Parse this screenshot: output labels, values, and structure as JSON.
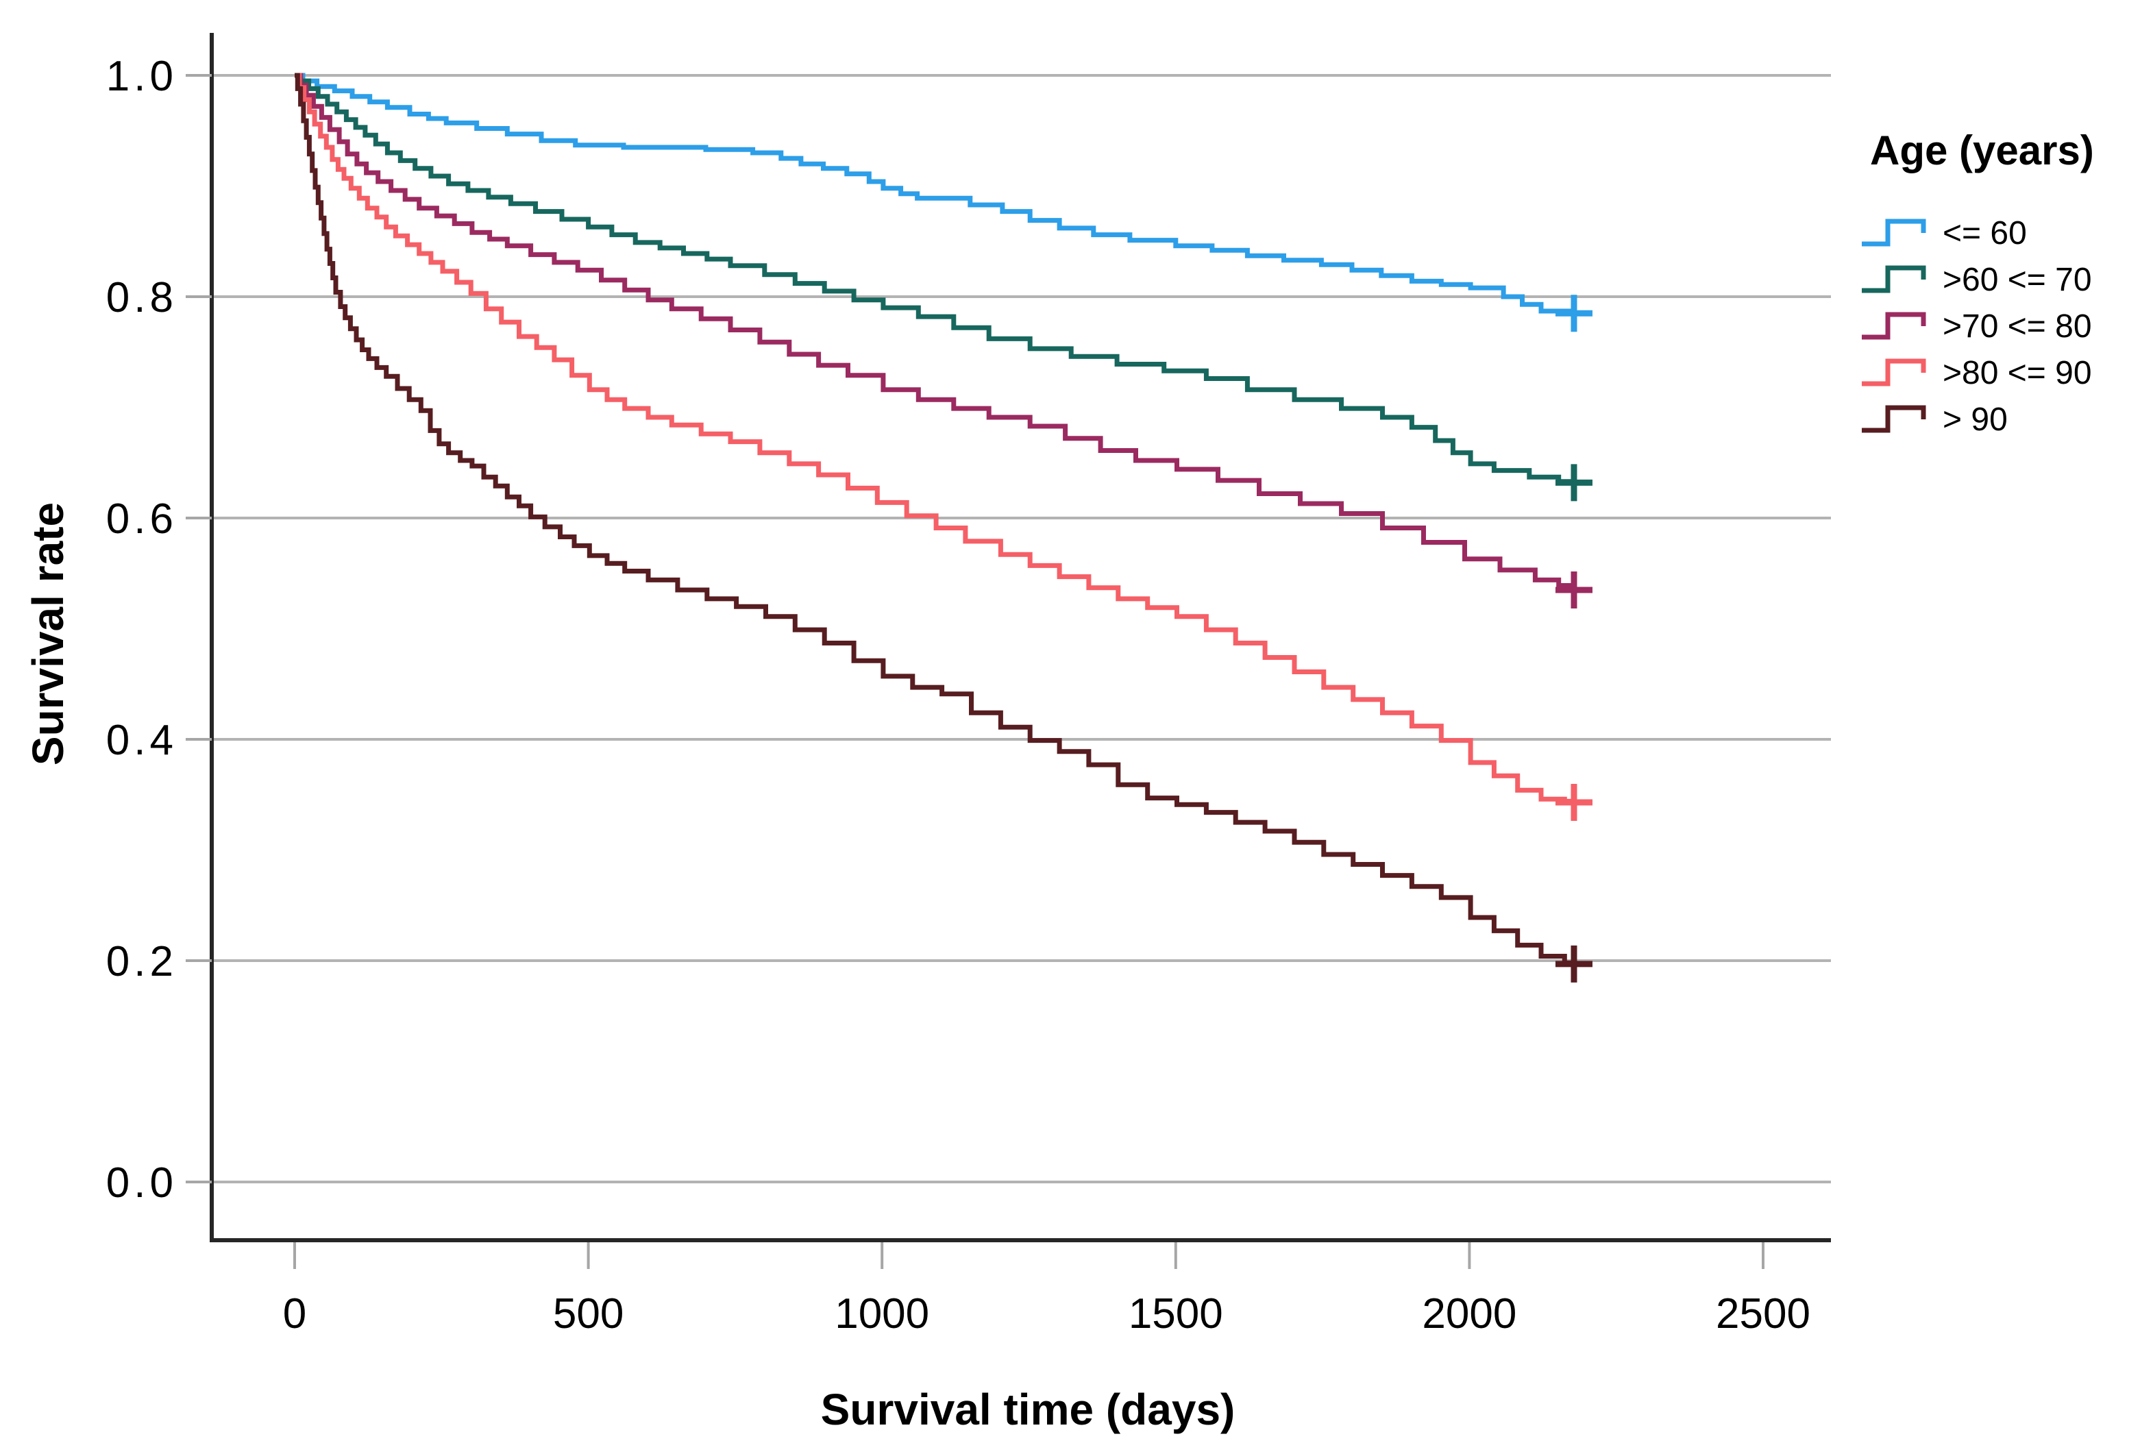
{
  "page": {
    "background": "#ffffff"
  },
  "chart_data": {
    "type": "line",
    "variant": "kaplan_meier_step",
    "title": "",
    "xlabel": "Survival time (days)",
    "ylabel": "Survival rate",
    "x_tick_values": [
      0,
      500,
      1000,
      1500,
      2000,
      2500
    ],
    "y_tick_labels": [
      "1.0",
      "0.8",
      "0.6",
      "0.4",
      "0.2",
      "0.0"
    ],
    "y_tick_values": [
      1.0,
      0.8,
      0.6,
      0.4,
      0.2,
      0.0
    ],
    "xlim": [
      -140,
      2615
    ],
    "ylim": [
      -0.053,
      1.037
    ],
    "grid": "horizontal-only",
    "gridline_color": "#b3b3b3",
    "tick_color": "#a6a6a6",
    "axis_color": "#262626",
    "legend_title": "Age (years)",
    "legend_position": "right",
    "censor_day": 2178,
    "series": [
      {
        "name": "<= 60",
        "color": "#2D9EE8",
        "censor_value": 0.785,
        "points": [
          [
            0,
            1.0
          ],
          [
            14,
            0.995
          ],
          [
            38,
            0.99
          ],
          [
            68,
            0.986
          ],
          [
            98,
            0.981
          ],
          [
            128,
            0.976
          ],
          [
            158,
            0.971
          ],
          [
            196,
            0.965
          ],
          [
            228,
            0.961
          ],
          [
            258,
            0.957
          ],
          [
            310,
            0.952
          ],
          [
            362,
            0.947
          ],
          [
            420,
            0.941
          ],
          [
            478,
            0.937
          ],
          [
            560,
            0.935
          ],
          [
            700,
            0.933
          ],
          [
            780,
            0.93
          ],
          [
            828,
            0.925
          ],
          [
            862,
            0.92
          ],
          [
            900,
            0.916
          ],
          [
            940,
            0.911
          ],
          [
            978,
            0.904
          ],
          [
            1002,
            0.898
          ],
          [
            1032,
            0.893
          ],
          [
            1060,
            0.889
          ],
          [
            1150,
            0.883
          ],
          [
            1205,
            0.877
          ],
          [
            1252,
            0.869
          ],
          [
            1302,
            0.862
          ],
          [
            1360,
            0.856
          ],
          [
            1422,
            0.851
          ],
          [
            1500,
            0.846
          ],
          [
            1562,
            0.842
          ],
          [
            1622,
            0.837
          ],
          [
            1684,
            0.833
          ],
          [
            1748,
            0.829
          ],
          [
            1800,
            0.824
          ],
          [
            1850,
            0.819
          ],
          [
            1902,
            0.814
          ],
          [
            1952,
            0.811
          ],
          [
            2002,
            0.808
          ],
          [
            2058,
            0.8
          ],
          [
            2090,
            0.793
          ],
          [
            2122,
            0.787
          ],
          [
            2178,
            0.785
          ]
        ]
      },
      {
        "name": ">60 <= 70",
        "color": "#17675E",
        "censor_value": 0.632,
        "points": [
          [
            0,
            1.0
          ],
          [
            10,
            0.995
          ],
          [
            24,
            0.988
          ],
          [
            40,
            0.981
          ],
          [
            56,
            0.974
          ],
          [
            72,
            0.967
          ],
          [
            88,
            0.96
          ],
          [
            104,
            0.953
          ],
          [
            120,
            0.946
          ],
          [
            138,
            0.938
          ],
          [
            158,
            0.93
          ],
          [
            180,
            0.923
          ],
          [
            205,
            0.916
          ],
          [
            232,
            0.909
          ],
          [
            262,
            0.902
          ],
          [
            295,
            0.896
          ],
          [
            330,
            0.89
          ],
          [
            368,
            0.884
          ],
          [
            410,
            0.877
          ],
          [
            455,
            0.87
          ],
          [
            500,
            0.863
          ],
          [
            540,
            0.856
          ],
          [
            580,
            0.849
          ],
          [
            622,
            0.844
          ],
          [
            662,
            0.839
          ],
          [
            702,
            0.834
          ],
          [
            742,
            0.828
          ],
          [
            800,
            0.82
          ],
          [
            852,
            0.812
          ],
          [
            902,
            0.805
          ],
          [
            952,
            0.797
          ],
          [
            1002,
            0.79
          ],
          [
            1062,
            0.782
          ],
          [
            1122,
            0.772
          ],
          [
            1182,
            0.762
          ],
          [
            1252,
            0.753
          ],
          [
            1322,
            0.746
          ],
          [
            1400,
            0.739
          ],
          [
            1480,
            0.733
          ],
          [
            1552,
            0.726
          ],
          [
            1622,
            0.716
          ],
          [
            1702,
            0.707
          ],
          [
            1782,
            0.699
          ],
          [
            1852,
            0.691
          ],
          [
            1902,
            0.682
          ],
          [
            1942,
            0.67
          ],
          [
            1972,
            0.659
          ],
          [
            2002,
            0.649
          ],
          [
            2042,
            0.643
          ],
          [
            2102,
            0.637
          ],
          [
            2152,
            0.633
          ],
          [
            2178,
            0.632
          ]
        ]
      },
      {
        "name": ">70 <= 80",
        "color": "#9B2A60",
        "censor_value": 0.535,
        "points": [
          [
            0,
            1.0
          ],
          [
            10,
            0.991
          ],
          [
            20,
            0.982
          ],
          [
            32,
            0.972
          ],
          [
            46,
            0.962
          ],
          [
            60,
            0.951
          ],
          [
            76,
            0.94
          ],
          [
            90,
            0.929
          ],
          [
            106,
            0.92
          ],
          [
            122,
            0.912
          ],
          [
            142,
            0.904
          ],
          [
            164,
            0.896
          ],
          [
            188,
            0.888
          ],
          [
            212,
            0.88
          ],
          [
            242,
            0.873
          ],
          [
            272,
            0.866
          ],
          [
            302,
            0.858
          ],
          [
            332,
            0.852
          ],
          [
            362,
            0.846
          ],
          [
            402,
            0.838
          ],
          [
            442,
            0.831
          ],
          [
            482,
            0.824
          ],
          [
            522,
            0.815
          ],
          [
            562,
            0.806
          ],
          [
            602,
            0.797
          ],
          [
            642,
            0.789
          ],
          [
            692,
            0.78
          ],
          [
            742,
            0.77
          ],
          [
            792,
            0.759
          ],
          [
            842,
            0.748
          ],
          [
            892,
            0.738
          ],
          [
            942,
            0.729
          ],
          [
            1002,
            0.716
          ],
          [
            1062,
            0.707
          ],
          [
            1122,
            0.699
          ],
          [
            1182,
            0.691
          ],
          [
            1252,
            0.683
          ],
          [
            1312,
            0.672
          ],
          [
            1372,
            0.661
          ],
          [
            1432,
            0.652
          ],
          [
            1502,
            0.644
          ],
          [
            1572,
            0.634
          ],
          [
            1642,
            0.622
          ],
          [
            1712,
            0.613
          ],
          [
            1782,
            0.604
          ],
          [
            1852,
            0.591
          ],
          [
            1922,
            0.578
          ],
          [
            1992,
            0.563
          ],
          [
            2052,
            0.553
          ],
          [
            2112,
            0.544
          ],
          [
            2152,
            0.539
          ],
          [
            2178,
            0.535
          ]
        ]
      },
      {
        "name": ">80 <= 90",
        "color": "#F55F66",
        "censor_value": 0.343,
        "points": [
          [
            0,
            1.0
          ],
          [
            8,
            0.989
          ],
          [
            16,
            0.978
          ],
          [
            25,
            0.967
          ],
          [
            34,
            0.956
          ],
          [
            44,
            0.945
          ],
          [
            54,
            0.935
          ],
          [
            64,
            0.924
          ],
          [
            74,
            0.915
          ],
          [
            84,
            0.907
          ],
          [
            96,
            0.898
          ],
          [
            110,
            0.889
          ],
          [
            124,
            0.88
          ],
          [
            140,
            0.872
          ],
          [
            156,
            0.863
          ],
          [
            172,
            0.855
          ],
          [
            192,
            0.847
          ],
          [
            212,
            0.839
          ],
          [
            232,
            0.831
          ],
          [
            252,
            0.823
          ],
          [
            276,
            0.813
          ],
          [
            300,
            0.803
          ],
          [
            326,
            0.789
          ],
          [
            352,
            0.777
          ],
          [
            382,
            0.764
          ],
          [
            412,
            0.754
          ],
          [
            442,
            0.743
          ],
          [
            472,
            0.729
          ],
          [
            502,
            0.716
          ],
          [
            532,
            0.707
          ],
          [
            562,
            0.699
          ],
          [
            602,
            0.691
          ],
          [
            642,
            0.684
          ],
          [
            692,
            0.676
          ],
          [
            742,
            0.669
          ],
          [
            792,
            0.659
          ],
          [
            842,
            0.649
          ],
          [
            892,
            0.639
          ],
          [
            942,
            0.627
          ],
          [
            992,
            0.614
          ],
          [
            1042,
            0.602
          ],
          [
            1092,
            0.591
          ],
          [
            1142,
            0.579
          ],
          [
            1202,
            0.567
          ],
          [
            1252,
            0.557
          ],
          [
            1302,
            0.547
          ],
          [
            1352,
            0.537
          ],
          [
            1402,
            0.527
          ],
          [
            1452,
            0.519
          ],
          [
            1502,
            0.511
          ],
          [
            1552,
            0.499
          ],
          [
            1602,
            0.487
          ],
          [
            1652,
            0.474
          ],
          [
            1702,
            0.461
          ],
          [
            1752,
            0.447
          ],
          [
            1802,
            0.436
          ],
          [
            1852,
            0.424
          ],
          [
            1902,
            0.412
          ],
          [
            1952,
            0.399
          ],
          [
            2002,
            0.379
          ],
          [
            2042,
            0.367
          ],
          [
            2082,
            0.354
          ],
          [
            2122,
            0.346
          ],
          [
            2162,
            0.344
          ],
          [
            2178,
            0.343
          ]
        ]
      },
      {
        "name": "> 90",
        "color": "#571D20",
        "censor_value": 0.197,
        "points": [
          [
            0,
            1.0
          ],
          [
            5,
            0.988
          ],
          [
            10,
            0.974
          ],
          [
            15,
            0.959
          ],
          [
            20,
            0.944
          ],
          [
            25,
            0.929
          ],
          [
            30,
            0.914
          ],
          [
            35,
            0.899
          ],
          [
            40,
            0.885
          ],
          [
            45,
            0.871
          ],
          [
            50,
            0.857
          ],
          [
            55,
            0.843
          ],
          [
            60,
            0.83
          ],
          [
            65,
            0.817
          ],
          [
            70,
            0.804
          ],
          [
            78,
            0.791
          ],
          [
            86,
            0.781
          ],
          [
            95,
            0.771
          ],
          [
            105,
            0.761
          ],
          [
            115,
            0.752
          ],
          [
            126,
            0.744
          ],
          [
            140,
            0.736
          ],
          [
            156,
            0.728
          ],
          [
            175,
            0.717
          ],
          [
            195,
            0.707
          ],
          [
            215,
            0.697
          ],
          [
            231,
            0.679
          ],
          [
            246,
            0.667
          ],
          [
            262,
            0.659
          ],
          [
            282,
            0.652
          ],
          [
            302,
            0.647
          ],
          [
            322,
            0.637
          ],
          [
            342,
            0.629
          ],
          [
            362,
            0.619
          ],
          [
            382,
            0.611
          ],
          [
            402,
            0.601
          ],
          [
            426,
            0.592
          ],
          [
            452,
            0.583
          ],
          [
            476,
            0.575
          ],
          [
            502,
            0.566
          ],
          [
            532,
            0.559
          ],
          [
            562,
            0.552
          ],
          [
            602,
            0.544
          ],
          [
            652,
            0.535
          ],
          [
            702,
            0.527
          ],
          [
            752,
            0.52
          ],
          [
            802,
            0.511
          ],
          [
            852,
            0.499
          ],
          [
            902,
            0.487
          ],
          [
            952,
            0.471
          ],
          [
            1002,
            0.457
          ],
          [
            1052,
            0.447
          ],
          [
            1102,
            0.441
          ],
          [
            1152,
            0.424
          ],
          [
            1202,
            0.411
          ],
          [
            1252,
            0.399
          ],
          [
            1302,
            0.389
          ],
          [
            1352,
            0.377
          ],
          [
            1402,
            0.359
          ],
          [
            1452,
            0.347
          ],
          [
            1502,
            0.341
          ],
          [
            1552,
            0.334
          ],
          [
            1602,
            0.325
          ],
          [
            1652,
            0.317
          ],
          [
            1702,
            0.307
          ],
          [
            1752,
            0.296
          ],
          [
            1802,
            0.287
          ],
          [
            1852,
            0.277
          ],
          [
            1902,
            0.267
          ],
          [
            1952,
            0.257
          ],
          [
            2002,
            0.239
          ],
          [
            2042,
            0.227
          ],
          [
            2082,
            0.214
          ],
          [
            2122,
            0.204
          ],
          [
            2162,
            0.198
          ],
          [
            2178,
            0.197
          ]
        ]
      }
    ]
  }
}
